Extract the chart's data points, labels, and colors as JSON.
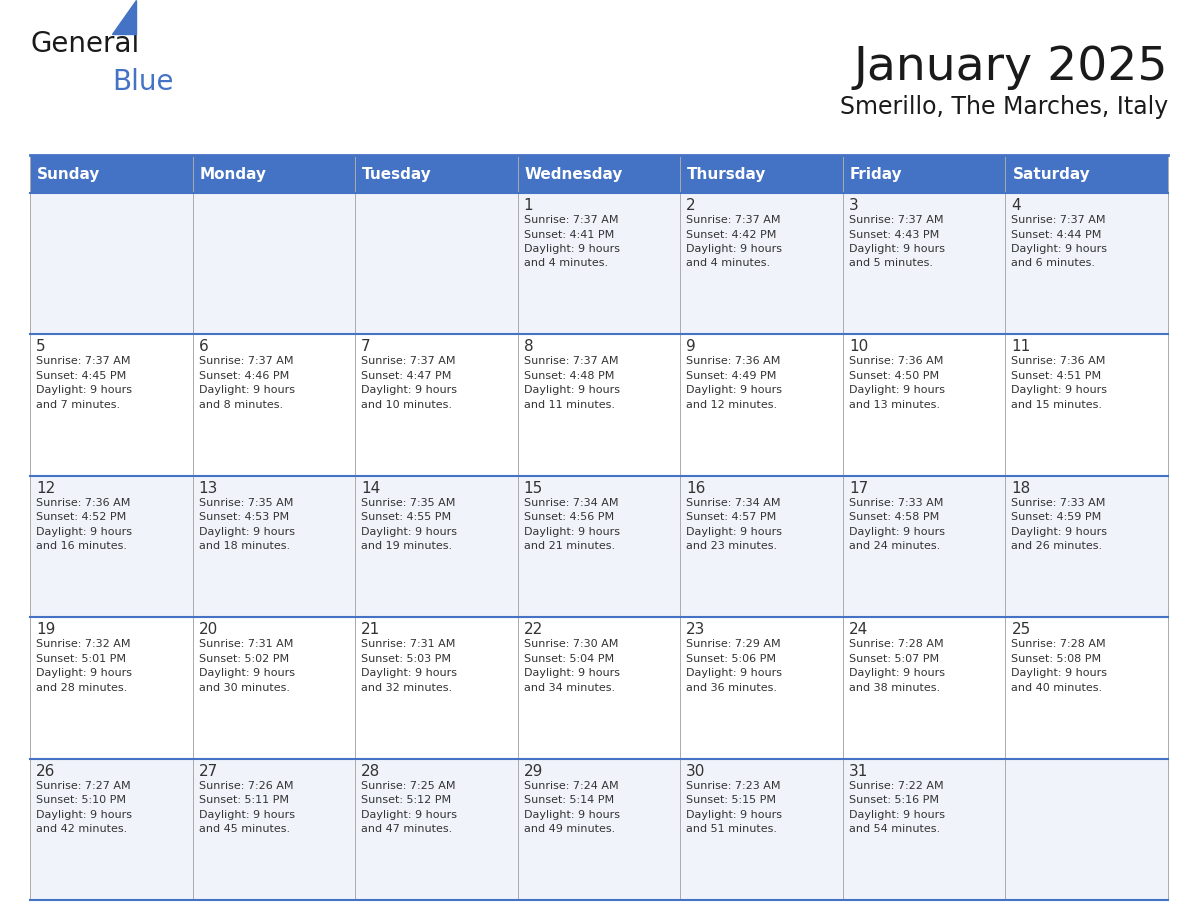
{
  "title": "January 2025",
  "subtitle": "Smerillo, The Marches, Italy",
  "header_bg_color": "#4472C4",
  "header_text_color": "#FFFFFF",
  "day_names": [
    "Sunday",
    "Monday",
    "Tuesday",
    "Wednesday",
    "Thursday",
    "Friday",
    "Saturday"
  ],
  "bg_color": "#FFFFFF",
  "cell_bg_even": "#F0F4FA",
  "cell_bg_odd": "#FFFFFF",
  "cell_border_color": "#4472C4",
  "text_color": "#333333",
  "calendar_data": [
    [
      {
        "day": "",
        "sunrise": "",
        "sunset": "",
        "daylight": ""
      },
      {
        "day": "",
        "sunrise": "",
        "sunset": "",
        "daylight": ""
      },
      {
        "day": "",
        "sunrise": "",
        "sunset": "",
        "daylight": ""
      },
      {
        "day": "1",
        "sunrise": "7:37 AM",
        "sunset": "4:41 PM",
        "daylight": "9 hours and 4 minutes."
      },
      {
        "day": "2",
        "sunrise": "7:37 AM",
        "sunset": "4:42 PM",
        "daylight": "9 hours and 4 minutes."
      },
      {
        "day": "3",
        "sunrise": "7:37 AM",
        "sunset": "4:43 PM",
        "daylight": "9 hours and 5 minutes."
      },
      {
        "day": "4",
        "sunrise": "7:37 AM",
        "sunset": "4:44 PM",
        "daylight": "9 hours and 6 minutes."
      }
    ],
    [
      {
        "day": "5",
        "sunrise": "7:37 AM",
        "sunset": "4:45 PM",
        "daylight": "9 hours and 7 minutes."
      },
      {
        "day": "6",
        "sunrise": "7:37 AM",
        "sunset": "4:46 PM",
        "daylight": "9 hours and 8 minutes."
      },
      {
        "day": "7",
        "sunrise": "7:37 AM",
        "sunset": "4:47 PM",
        "daylight": "9 hours and 10 minutes."
      },
      {
        "day": "8",
        "sunrise": "7:37 AM",
        "sunset": "4:48 PM",
        "daylight": "9 hours and 11 minutes."
      },
      {
        "day": "9",
        "sunrise": "7:36 AM",
        "sunset": "4:49 PM",
        "daylight": "9 hours and 12 minutes."
      },
      {
        "day": "10",
        "sunrise": "7:36 AM",
        "sunset": "4:50 PM",
        "daylight": "9 hours and 13 minutes."
      },
      {
        "day": "11",
        "sunrise": "7:36 AM",
        "sunset": "4:51 PM",
        "daylight": "9 hours and 15 minutes."
      }
    ],
    [
      {
        "day": "12",
        "sunrise": "7:36 AM",
        "sunset": "4:52 PM",
        "daylight": "9 hours and 16 minutes."
      },
      {
        "day": "13",
        "sunrise": "7:35 AM",
        "sunset": "4:53 PM",
        "daylight": "9 hours and 18 minutes."
      },
      {
        "day": "14",
        "sunrise": "7:35 AM",
        "sunset": "4:55 PM",
        "daylight": "9 hours and 19 minutes."
      },
      {
        "day": "15",
        "sunrise": "7:34 AM",
        "sunset": "4:56 PM",
        "daylight": "9 hours and 21 minutes."
      },
      {
        "day": "16",
        "sunrise": "7:34 AM",
        "sunset": "4:57 PM",
        "daylight": "9 hours and 23 minutes."
      },
      {
        "day": "17",
        "sunrise": "7:33 AM",
        "sunset": "4:58 PM",
        "daylight": "9 hours and 24 minutes."
      },
      {
        "day": "18",
        "sunrise": "7:33 AM",
        "sunset": "4:59 PM",
        "daylight": "9 hours and 26 minutes."
      }
    ],
    [
      {
        "day": "19",
        "sunrise": "7:32 AM",
        "sunset": "5:01 PM",
        "daylight": "9 hours and 28 minutes."
      },
      {
        "day": "20",
        "sunrise": "7:31 AM",
        "sunset": "5:02 PM",
        "daylight": "9 hours and 30 minutes."
      },
      {
        "day": "21",
        "sunrise": "7:31 AM",
        "sunset": "5:03 PM",
        "daylight": "9 hours and 32 minutes."
      },
      {
        "day": "22",
        "sunrise": "7:30 AM",
        "sunset": "5:04 PM",
        "daylight": "9 hours and 34 minutes."
      },
      {
        "day": "23",
        "sunrise": "7:29 AM",
        "sunset": "5:06 PM",
        "daylight": "9 hours and 36 minutes."
      },
      {
        "day": "24",
        "sunrise": "7:28 AM",
        "sunset": "5:07 PM",
        "daylight": "9 hours and 38 minutes."
      },
      {
        "day": "25",
        "sunrise": "7:28 AM",
        "sunset": "5:08 PM",
        "daylight": "9 hours and 40 minutes."
      }
    ],
    [
      {
        "day": "26",
        "sunrise": "7:27 AM",
        "sunset": "5:10 PM",
        "daylight": "9 hours and 42 minutes."
      },
      {
        "day": "27",
        "sunrise": "7:26 AM",
        "sunset": "5:11 PM",
        "daylight": "9 hours and 45 minutes."
      },
      {
        "day": "28",
        "sunrise": "7:25 AM",
        "sunset": "5:12 PM",
        "daylight": "9 hours and 47 minutes."
      },
      {
        "day": "29",
        "sunrise": "7:24 AM",
        "sunset": "5:14 PM",
        "daylight": "9 hours and 49 minutes."
      },
      {
        "day": "30",
        "sunrise": "7:23 AM",
        "sunset": "5:15 PM",
        "daylight": "9 hours and 51 minutes."
      },
      {
        "day": "31",
        "sunrise": "7:22 AM",
        "sunset": "5:16 PM",
        "daylight": "9 hours and 54 minutes."
      },
      {
        "day": "",
        "sunrise": "",
        "sunset": "",
        "daylight": ""
      }
    ]
  ]
}
